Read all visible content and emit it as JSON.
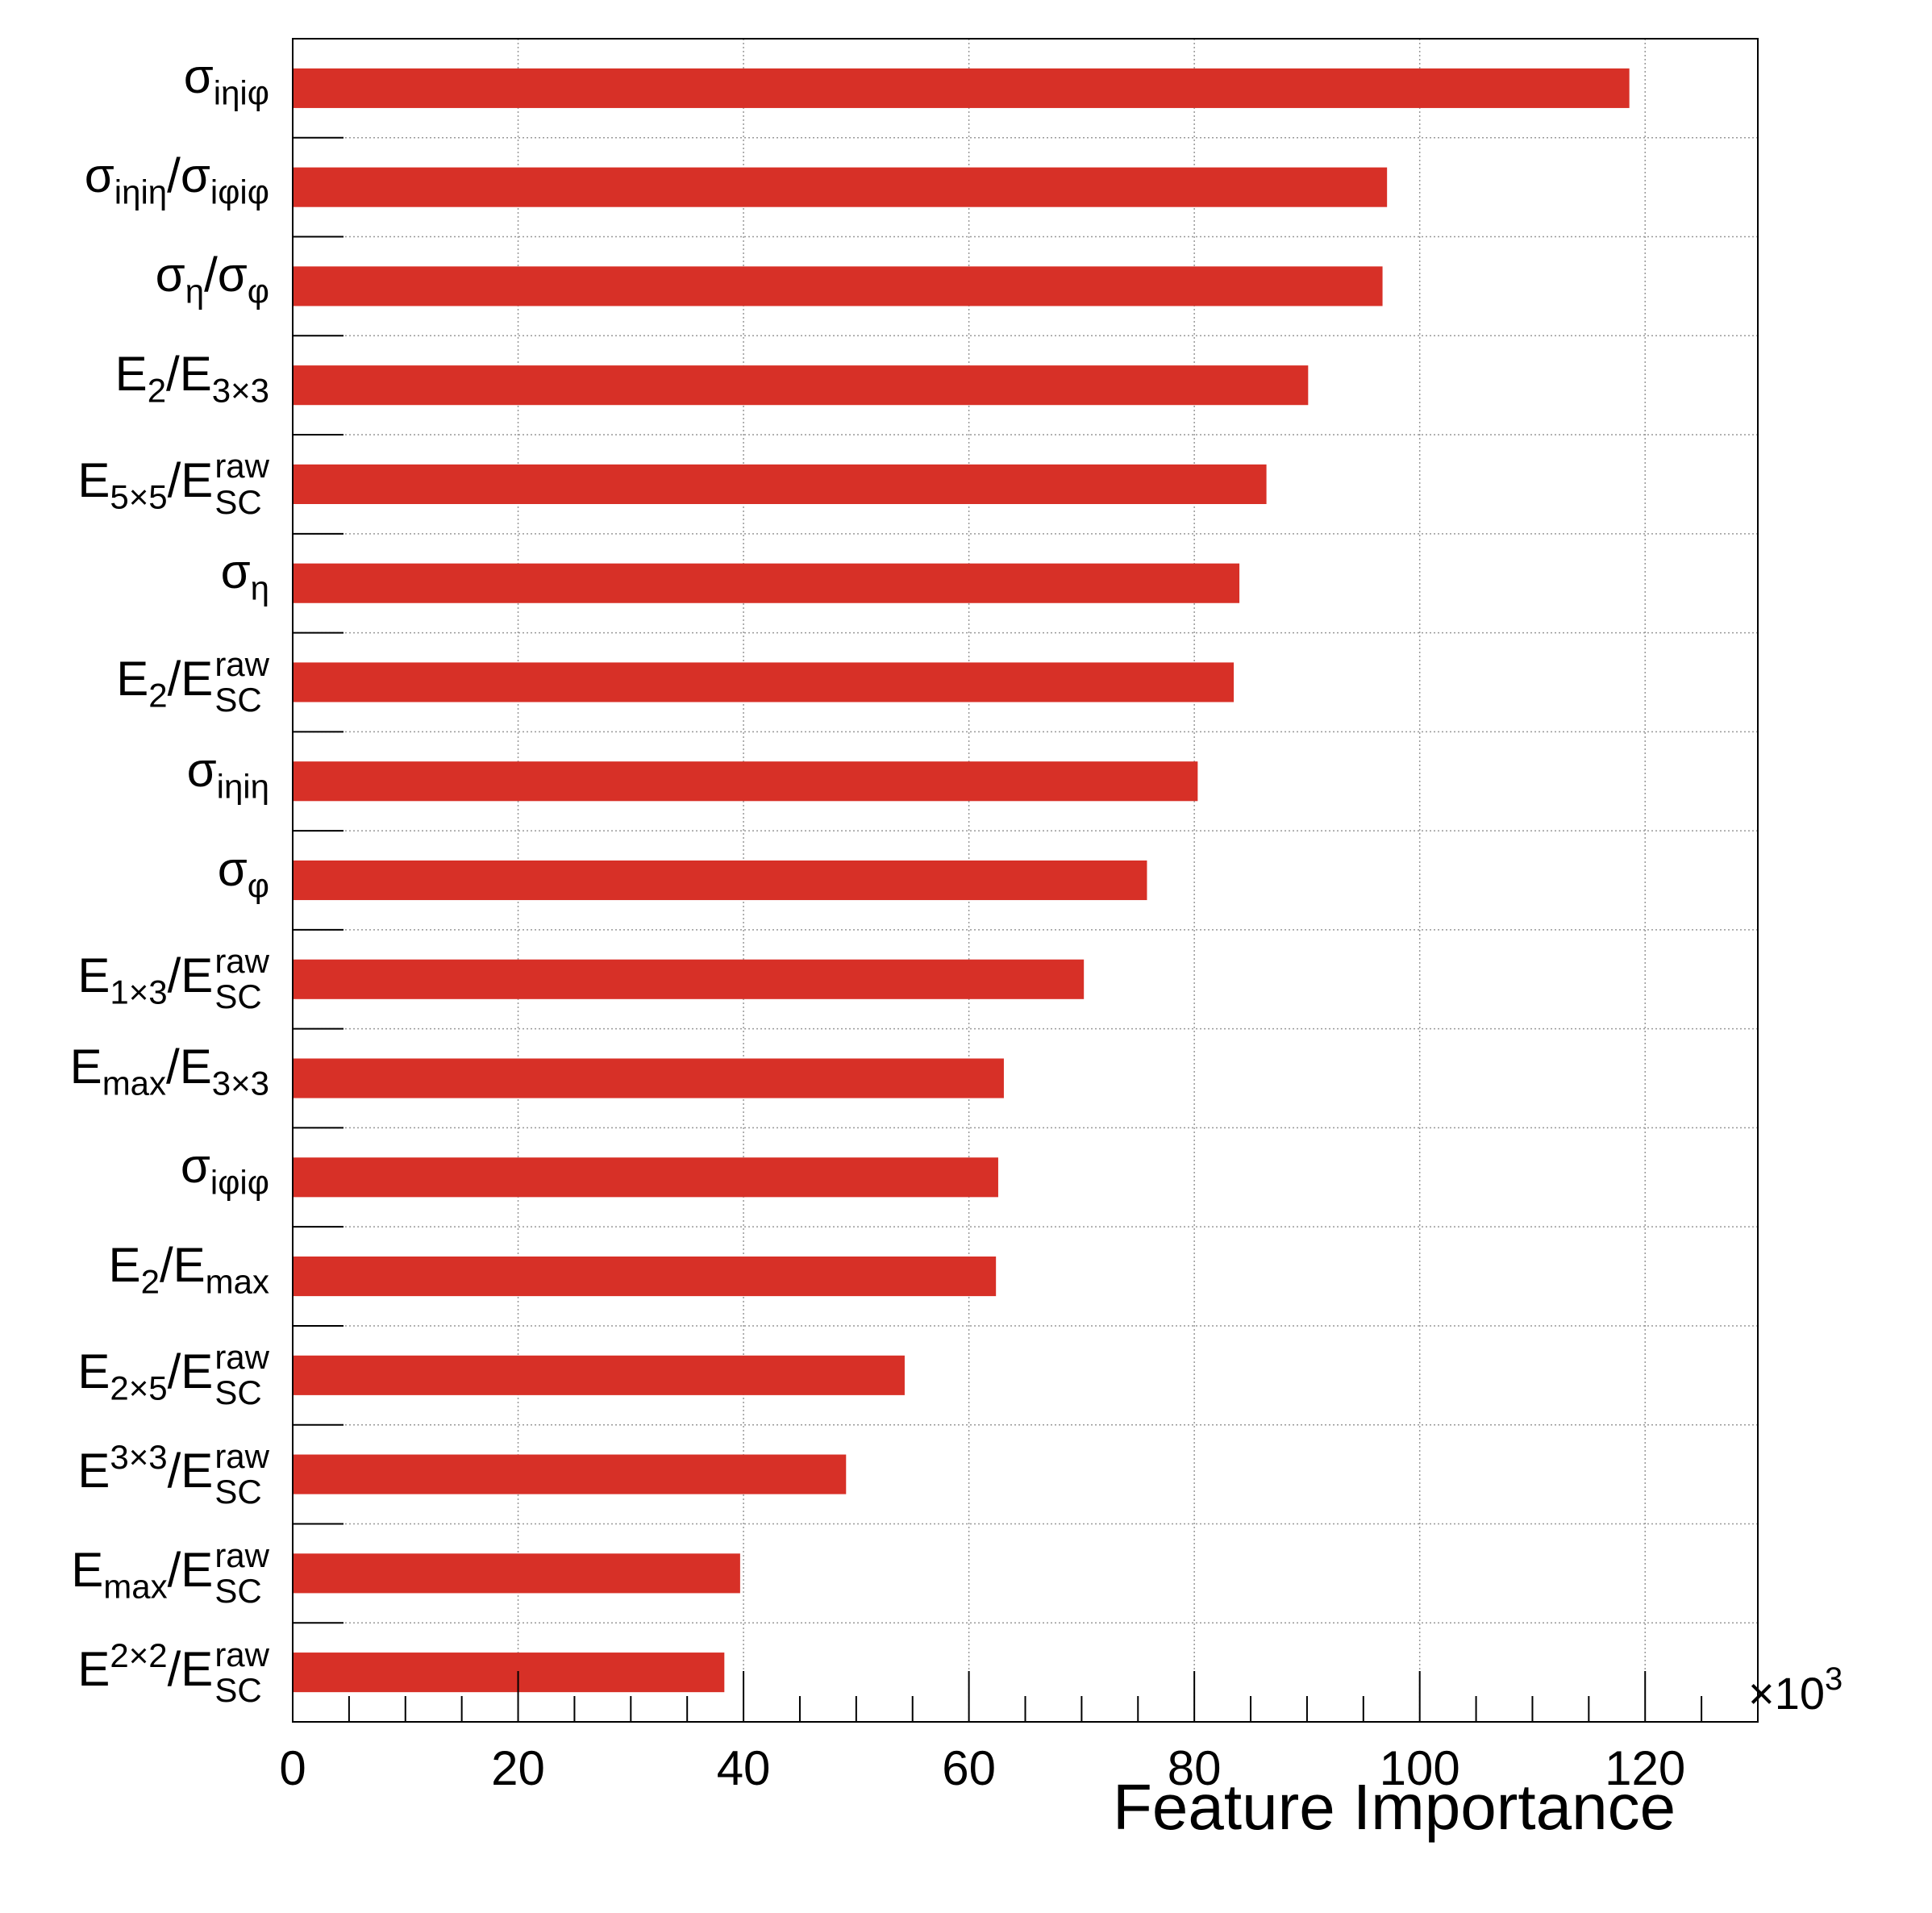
{
  "chart_data": {
    "type": "bar",
    "orientation": "horizontal",
    "categories": [
      "σ_iηiφ",
      "σ_iηiη/σ_iφiφ",
      "σ_η/σ_φ",
      "E_2/E_3×3",
      "E_5×5/E^raw_SC",
      "σ_η",
      "E_2/E^raw_SC",
      "σ_iηiη",
      "σ_φ",
      "E_1×3/E^raw_SC",
      "E_max/E_3×3",
      "σ_iφiφ",
      "E_2/E_max",
      "E_2×5/E^raw_SC",
      "E^3×3/E^raw_SC",
      "E_max/E^raw_SC",
      "E^2×2/E^raw_SC"
    ],
    "values": [
      118.6,
      97.1,
      96.7,
      90.1,
      86.4,
      84.0,
      83.5,
      80.3,
      75.8,
      70.2,
      63.1,
      62.6,
      62.4,
      54.3,
      49.1,
      39.7,
      38.3
    ],
    "xlabel": "Feature Importance",
    "ylabel": "",
    "title": "",
    "xlim": [
      0,
      130
    ],
    "x_ticks": [
      "0",
      "20",
      "40",
      "60",
      "80",
      "100",
      "120"
    ],
    "x_multiplier": "×10",
    "x_multiplier_exp": "3",
    "grid": true,
    "bar_color": "#d73027"
  },
  "labels": [
    {
      "base": "σ",
      "sub": "iηiφ"
    },
    {
      "base": "σ",
      "sub": "iηiη",
      "mid": "/σ",
      "sub2": "iφiφ"
    },
    {
      "base": "σ",
      "sub": "η",
      "mid": "/σ",
      "sub2": "φ"
    },
    {
      "base": "E",
      "sub": "2",
      "mid": "/E",
      "sub2": "3×3"
    },
    {
      "base": "E",
      "sub": "5×5",
      "mid": "/E",
      "sub2": "SC",
      "sup2": "raw"
    },
    {
      "base": "σ",
      "sub": "η"
    },
    {
      "base": "E",
      "sub": "2",
      "mid": "/E",
      "sub2": "SC",
      "sup2": "raw"
    },
    {
      "base": "σ",
      "sub": "iηiη"
    },
    {
      "base": "σ",
      "sub": "φ"
    },
    {
      "base": "E",
      "sub": "1×3",
      "mid": "/E",
      "sub2": "SC",
      "sup2": "raw"
    },
    {
      "base": "E",
      "sub": "max",
      "mid": "/E",
      "sub2": "3×3"
    },
    {
      "base": "σ",
      "sub": "iφiφ"
    },
    {
      "base": "E",
      "sub": "2",
      "mid": "/E",
      "sub2": "max"
    },
    {
      "base": "E",
      "sub": "2×5",
      "mid": "/E",
      "sub2": "SC",
      "sup2": "raw"
    },
    {
      "base": "E",
      "sup": "3×3",
      "mid": "/E",
      "sub2": "SC",
      "sup2": "raw"
    },
    {
      "base": "E",
      "sub": "max",
      "mid": "/E",
      "sub2": "SC",
      "sup2": "raw"
    },
    {
      "base": "E",
      "sup": "2×2",
      "mid": "/E",
      "sub2": "SC",
      "sup2": "raw"
    }
  ]
}
